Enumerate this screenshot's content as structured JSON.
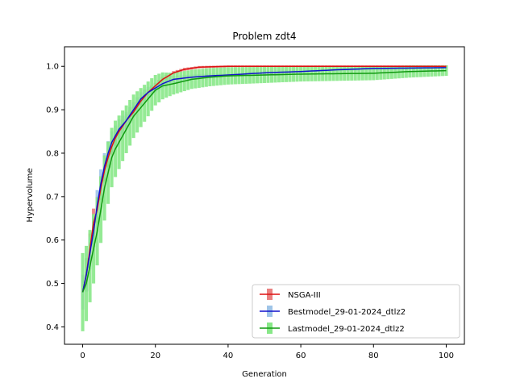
{
  "chart_data": {
    "type": "line",
    "title": "Problem zdt4",
    "xlabel": "Generation",
    "ylabel": "Hypervolume",
    "xlim": [
      -5,
      105
    ],
    "ylim": [
      0.36,
      1.045
    ],
    "xticks": [
      0,
      20,
      40,
      60,
      80,
      100
    ],
    "yticks": [
      0.4,
      0.5,
      0.6,
      0.7,
      0.8,
      0.9,
      1.0
    ],
    "xtick_labels": [
      "0",
      "20",
      "40",
      "60",
      "80",
      "100"
    ],
    "ytick_labels": [
      "0.4",
      "0.5",
      "0.6",
      "0.7",
      "0.8",
      "0.9",
      "1.0"
    ],
    "grid": false,
    "legend_position": "lower-right",
    "series": [
      {
        "name": "NSGA-III",
        "line_color": "#dd1111",
        "band_color": "#e98080",
        "points": [
          [
            0,
            0.48
          ],
          [
            1,
            0.52
          ],
          [
            2,
            0.58
          ],
          [
            3,
            0.64
          ],
          [
            4,
            0.67
          ],
          [
            5,
            0.72
          ],
          [
            6,
            0.76
          ],
          [
            7,
            0.79
          ],
          [
            8,
            0.815
          ],
          [
            9,
            0.835
          ],
          [
            10,
            0.85
          ],
          [
            12,
            0.875
          ],
          [
            14,
            0.895
          ],
          [
            16,
            0.92
          ],
          [
            18,
            0.94
          ],
          [
            20,
            0.955
          ],
          [
            22,
            0.97
          ],
          [
            25,
            0.985
          ],
          [
            28,
            0.993
          ],
          [
            32,
            0.998
          ],
          [
            40,
            1.0
          ],
          [
            60,
            1.0
          ],
          [
            80,
            1.0
          ],
          [
            100,
            1.0
          ]
        ],
        "spread": [
          [
            0,
            0.04
          ],
          [
            4,
            0.03
          ],
          [
            8,
            0.02
          ],
          [
            12,
            0.015
          ],
          [
            16,
            0.01
          ],
          [
            20,
            0.007
          ],
          [
            25,
            0.004
          ],
          [
            30,
            0.003
          ],
          [
            40,
            0.002
          ],
          [
            100,
            0.002
          ]
        ]
      },
      {
        "name": "Bestmodel_29-01-2024_dtlz2",
        "line_color": "#1111cc",
        "band_color": "#9fc4e8",
        "points": [
          [
            0,
            0.48
          ],
          [
            1,
            0.52
          ],
          [
            2,
            0.57
          ],
          [
            3,
            0.62
          ],
          [
            4,
            0.68
          ],
          [
            5,
            0.73
          ],
          [
            6,
            0.77
          ],
          [
            7,
            0.8
          ],
          [
            8,
            0.825
          ],
          [
            9,
            0.84
          ],
          [
            10,
            0.855
          ],
          [
            12,
            0.875
          ],
          [
            14,
            0.9
          ],
          [
            16,
            0.925
          ],
          [
            18,
            0.94
          ],
          [
            20,
            0.95
          ],
          [
            22,
            0.96
          ],
          [
            25,
            0.97
          ],
          [
            30,
            0.975
          ],
          [
            35,
            0.978
          ],
          [
            40,
            0.98
          ],
          [
            50,
            0.985
          ],
          [
            60,
            0.988
          ],
          [
            70,
            0.992
          ],
          [
            80,
            0.995
          ],
          [
            100,
            0.997
          ]
        ],
        "spread": [
          [
            0,
            0.04
          ],
          [
            4,
            0.035
          ],
          [
            8,
            0.025
          ],
          [
            12,
            0.02
          ],
          [
            16,
            0.015
          ],
          [
            20,
            0.01
          ],
          [
            30,
            0.006
          ],
          [
            40,
            0.004
          ],
          [
            100,
            0.003
          ]
        ]
      },
      {
        "name": "Lastmodel_29-01-2024_dtlz2",
        "line_color": "#119911",
        "band_color": "#88e888",
        "points": [
          [
            0,
            0.48
          ],
          [
            1,
            0.5
          ],
          [
            2,
            0.54
          ],
          [
            3,
            0.58
          ],
          [
            4,
            0.62
          ],
          [
            5,
            0.67
          ],
          [
            6,
            0.72
          ],
          [
            7,
            0.755
          ],
          [
            8,
            0.79
          ],
          [
            9,
            0.81
          ],
          [
            10,
            0.825
          ],
          [
            12,
            0.855
          ],
          [
            14,
            0.885
          ],
          [
            16,
            0.905
          ],
          [
            18,
            0.925
          ],
          [
            20,
            0.945
          ],
          [
            22,
            0.955
          ],
          [
            25,
            0.96
          ],
          [
            30,
            0.97
          ],
          [
            35,
            0.975
          ],
          [
            40,
            0.978
          ],
          [
            50,
            0.98
          ],
          [
            60,
            0.982
          ],
          [
            70,
            0.983
          ],
          [
            80,
            0.984
          ],
          [
            90,
            0.988
          ],
          [
            100,
            0.99
          ]
        ],
        "spread": [
          [
            0,
            0.09
          ],
          [
            3,
            0.08
          ],
          [
            6,
            0.075
          ],
          [
            9,
            0.065
          ],
          [
            12,
            0.055
          ],
          [
            16,
            0.045
          ],
          [
            20,
            0.035
          ],
          [
            25,
            0.025
          ],
          [
            30,
            0.022
          ],
          [
            40,
            0.02
          ],
          [
            60,
            0.017
          ],
          [
            80,
            0.016
          ],
          [
            100,
            0.012
          ]
        ]
      }
    ]
  }
}
